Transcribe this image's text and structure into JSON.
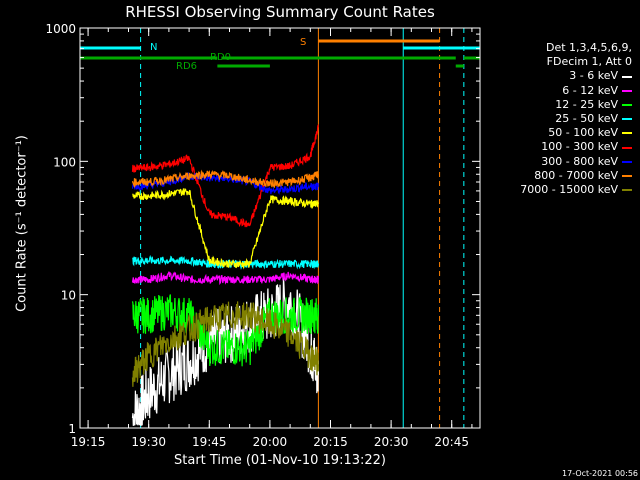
{
  "chart_data": {
    "type": "line",
    "title": "RHESSI Observing Summary Count Rates",
    "xlabel": "Start Time (01-Nov-10 19:13:22)",
    "ylabel": "Count Rate (s⁻¹ detector⁻¹)",
    "ylog": true,
    "ylim": [
      1,
      1000
    ],
    "xlim": [
      "19:13",
      "20:52"
    ],
    "x_ticks": [
      "19:15",
      "19:30",
      "19:45",
      "20:00",
      "20:15",
      "20:30",
      "20:45"
    ],
    "y_ticks": [
      "1",
      "10",
      "100",
      "1000"
    ],
    "legend_header": [
      "Det 1,3,4,5,6,9,",
      "FDecim 1, Att 0"
    ],
    "legend_placement": "right",
    "series": [
      {
        "name": "3 - 6 keV",
        "color": "#ffffff",
        "x": [
          "19:26",
          "19:30",
          "19:35",
          "19:40",
          "19:45",
          "19:50",
          "19:55",
          "20:00",
          "20:05",
          "20:10",
          "20:12"
        ],
        "y": [
          1.2,
          1.8,
          2.5,
          3.2,
          4.5,
          5.0,
          6.0,
          7.0,
          9.0,
          4.0,
          2.5
        ]
      },
      {
        "name": "6 - 12 keV",
        "color": "#ff00ff",
        "x": [
          "19:26",
          "19:30",
          "19:35",
          "19:40",
          "19:45",
          "19:50",
          "19:55",
          "20:00",
          "20:05",
          "20:10",
          "20:12"
        ],
        "y": [
          13,
          13,
          14,
          13,
          13,
          13,
          13,
          13,
          14,
          13,
          13
        ]
      },
      {
        "name": "12 - 25 keV",
        "color": "#00ff00",
        "x": [
          "19:26",
          "19:30",
          "19:35",
          "19:40",
          "19:45",
          "19:50",
          "19:55",
          "20:00",
          "20:05",
          "20:10",
          "20:12"
        ],
        "y": [
          7,
          7,
          7.5,
          7,
          4,
          4,
          4,
          7,
          7,
          7,
          7
        ]
      },
      {
        "name": "25 - 50 keV",
        "color": "#00ffff",
        "x": [
          "19:26",
          "19:30",
          "19:35",
          "19:40",
          "19:45",
          "19:50",
          "19:55",
          "20:00",
          "20:05",
          "20:10",
          "20:12"
        ],
        "y": [
          18,
          18,
          18,
          18,
          17,
          17,
          17,
          17,
          17,
          17,
          17
        ]
      },
      {
        "name": "50 - 100 keV",
        "color": "#ffff00",
        "x": [
          "19:26",
          "19:30",
          "19:35",
          "19:40",
          "19:45",
          "19:50",
          "19:55",
          "20:00",
          "20:05",
          "20:10",
          "20:12"
        ],
        "y": [
          55,
          55,
          57,
          60,
          18,
          17,
          17,
          52,
          50,
          48,
          48
        ]
      },
      {
        "name": "100 - 300 keV",
        "color": "#ff0000",
        "x": [
          "19:26",
          "19:30",
          "19:35",
          "19:40",
          "19:45",
          "19:50",
          "19:55",
          "20:00",
          "20:05",
          "20:10",
          "20:12"
        ],
        "y": [
          88,
          90,
          95,
          105,
          40,
          38,
          33,
          90,
          92,
          110,
          180
        ]
      },
      {
        "name": "300 - 800 keV",
        "color": "#0000ff",
        "x": [
          "19:26",
          "19:30",
          "19:35",
          "19:40",
          "19:45",
          "19:50",
          "19:55",
          "20:00",
          "20:05",
          "20:10",
          "20:12"
        ],
        "y": [
          65,
          66,
          70,
          78,
          75,
          74,
          70,
          60,
          62,
          65,
          65
        ]
      },
      {
        "name": "800 - 7000 keV",
        "color": "#ff8000",
        "x": [
          "19:26",
          "19:30",
          "19:35",
          "19:40",
          "19:45",
          "19:50",
          "19:55",
          "20:00",
          "20:05",
          "20:10",
          "20:12"
        ],
        "y": [
          70,
          70,
          73,
          78,
          80,
          78,
          72,
          68,
          70,
          75,
          80
        ]
      },
      {
        "name": "7000 - 15000 keV",
        "color": "#808000",
        "x": [
          "19:26",
          "19:30",
          "19:35",
          "19:40",
          "19:45",
          "19:50",
          "19:55",
          "20:00",
          "20:05",
          "20:10",
          "20:12"
        ],
        "y": [
          2.5,
          3.5,
          4.5,
          5.5,
          6.5,
          7.0,
          7.0,
          6.0,
          5.0,
          3.5,
          3.0
        ]
      }
    ],
    "annotations": [
      {
        "text": "N",
        "color": "#00ffff"
      },
      {
        "text": "RD0",
        "color": "#00aa00"
      },
      {
        "text": "RD6",
        "color": "#00aa00"
      },
      {
        "text": "S",
        "color": "#ff8000"
      }
    ],
    "vlines": [
      {
        "x": "19:13",
        "color": "#00ffff",
        "style": "solid"
      },
      {
        "x": "19:28",
        "color": "#00ffff",
        "style": "dashed"
      },
      {
        "x": "20:12",
        "color": "#ff8000",
        "style": "solid"
      },
      {
        "x": "20:33",
        "color": "#00ffff",
        "style": "solid"
      },
      {
        "x": "20:42",
        "color": "#ff8000",
        "style": "dashed"
      },
      {
        "x": "20:48",
        "color": "#00ffff",
        "style": "dashed"
      }
    ]
  },
  "footer": "17-Oct-2021 00:56"
}
